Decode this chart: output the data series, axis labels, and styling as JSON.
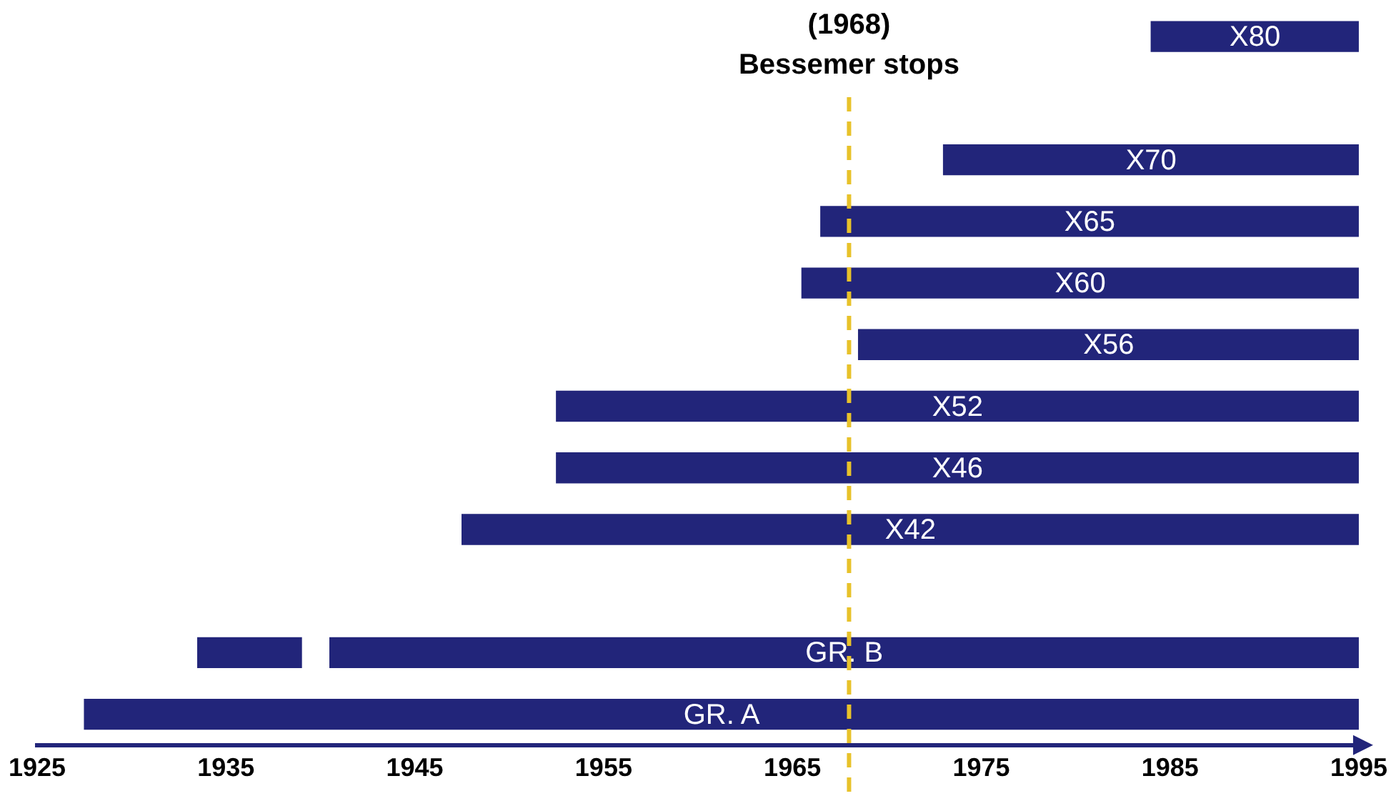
{
  "chart_data": {
    "type": "bar",
    "orientation": "horizontal",
    "categories": [
      "X80",
      null,
      "X70",
      "X65",
      "X60",
      "X56",
      "X52",
      "X46",
      "X42",
      null,
      "GR. B",
      "GR. A"
    ],
    "series": [
      {
        "color": "#22257a",
        "base": [
          1984,
          null,
          1973,
          1966.5,
          1965.5,
          1968.5,
          1952.5,
          1952.5,
          1947.5,
          null,
          1940.5,
          1927.5
        ],
        "values": [
          11,
          null,
          22,
          28.5,
          29.5,
          26.5,
          42.5,
          42.5,
          47.5,
          null,
          54.5,
          67.5
        ]
      },
      {
        "color": "#22257a",
        "base": [
          null,
          null,
          null,
          null,
          null,
          null,
          null,
          null,
          null,
          null,
          1933.5,
          null
        ],
        "values": [
          null,
          null,
          null,
          null,
          null,
          null,
          null,
          null,
          null,
          null,
          5.5,
          null
        ]
      }
    ],
    "xlim": [
      1925,
      1995
    ],
    "xticks": [
      1925,
      1935,
      1945,
      1955,
      1965,
      1975,
      1985,
      1995
    ],
    "tick_labels": "x",
    "ref_lines": [
      {
        "axis": "x",
        "value": 1968,
        "label": "(1968)\nBessemer stops",
        "color": "#e8c22a",
        "line_style": "dashed"
      }
    ]
  }
}
